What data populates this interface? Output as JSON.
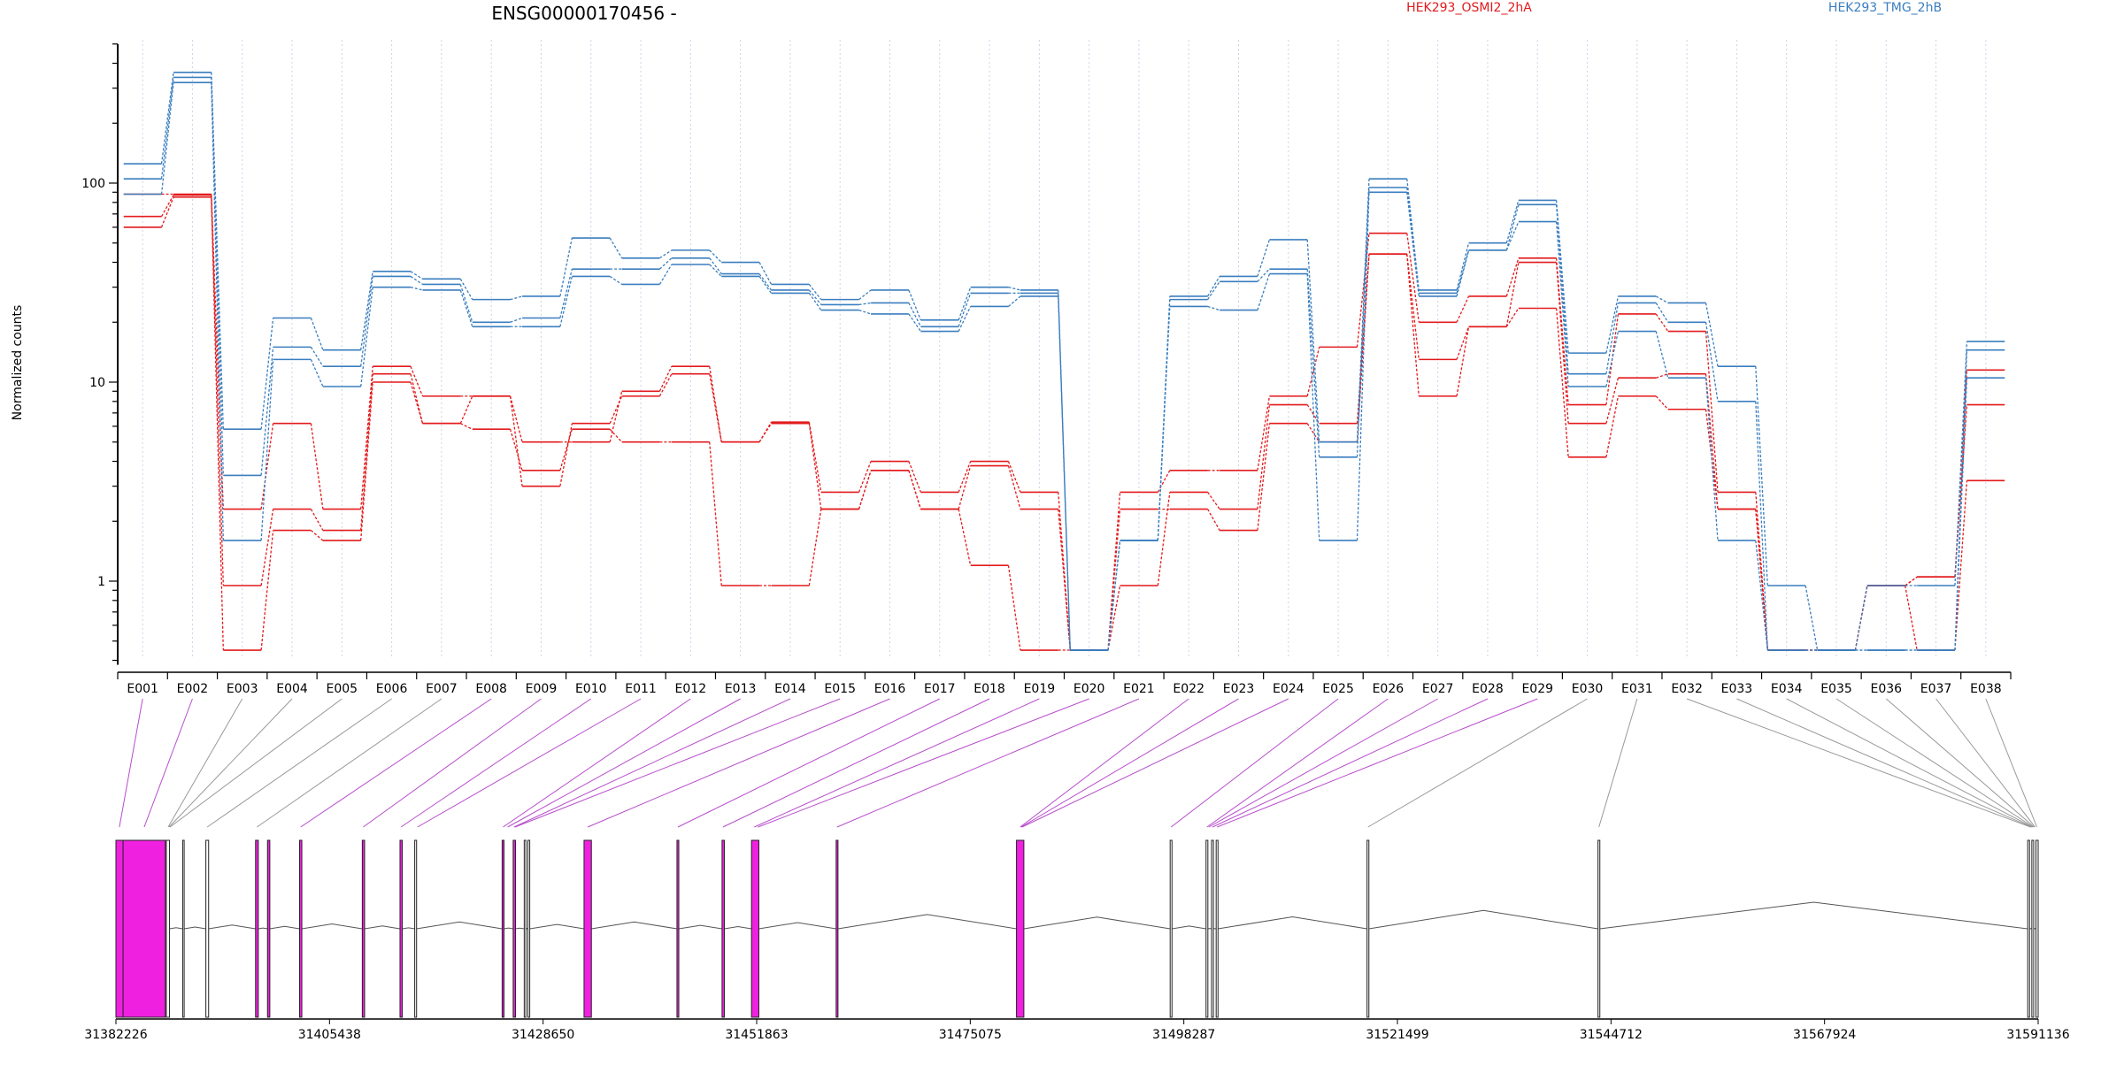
{
  "colors": {
    "series_a": "#e31a1c",
    "series_b": "#3a7ebf",
    "exon_highlight": "#f020e0",
    "connector_highlight": "#b84dcc",
    "connector_plain": "#999999",
    "axis": "#000000",
    "grid": "#c8d4e8"
  },
  "chart_data": [
    {
      "type": "line",
      "title": "ENSG00000170456 -",
      "ylabel": "Normalized counts",
      "xlabel": "",
      "yscale": "log",
      "ylim": [
        0.38,
        500
      ],
      "yticks": [
        1,
        10,
        100
      ],
      "ytick_labels": [
        "1",
        "10",
        "100"
      ],
      "grid": "vertical dotted",
      "legend": "top-right, inline labels",
      "categories": [
        "E001",
        "E002",
        "E003",
        "E004",
        "E005",
        "E006",
        "E007",
        "E008",
        "E009",
        "E010",
        "E011",
        "E012",
        "E013",
        "E014",
        "E015",
        "E016",
        "E017",
        "E018",
        "E019",
        "E020",
        "E021",
        "E022",
        "E023",
        "E024",
        "E025",
        "E026",
        "E027",
        "E028",
        "E029",
        "E030",
        "E031",
        "E032",
        "E033",
        "E034",
        "E035",
        "E036",
        "E037",
        "E038"
      ],
      "groups": [
        {
          "name": "HEK293_OSMI2_2hA",
          "color_key": "series_a",
          "replicates": [
            [
              60,
              85,
              0.45,
              1.8,
              1.6,
              10,
              6.2,
              5.8,
              3.6,
              5.8,
              5,
              5,
              0.95,
              0.95,
              2.3,
              3.6,
              2.3,
              1.2,
              0.45,
              0.45,
              2.3,
              2.3,
              1.8,
              6.2,
              5,
              44,
              13,
              19,
              23.5,
              4.2,
              8.5,
              7.3,
              2.3,
              0.45,
              0.45,
              0.95,
              0.45,
              3.2
            ],
            [
              68,
              87,
              0.95,
              2.3,
              1.8,
              11,
              6.2,
              8.5,
              3,
              6.2,
              8.5,
              11,
              5,
              6.2,
              2.3,
              3.6,
              2.3,
              3.8,
              2.3,
              0.45,
              0.95,
              2.8,
              2.3,
              7.7,
              6.2,
              44,
              8.5,
              19,
              40,
              6.2,
              10.5,
              11,
              2.3,
              0.45,
              0.45,
              0.95,
              1.05,
              7.7
            ],
            [
              88,
              88,
              2.3,
              6.2,
              2.3,
              12,
              8.5,
              8.5,
              5,
              5,
              9,
              12,
              5,
              6.3,
              2.8,
              4,
              2.8,
              4,
              2.8,
              0.45,
              2.8,
              3.6,
              3.6,
              8.5,
              15,
              56,
              20,
              27,
              42,
              7.7,
              22,
              18,
              2.8,
              0.45,
              0.45,
              0.95,
              1.05,
              11.5
            ]
          ]
        },
        {
          "name": "HEK293_TMG_2hB",
          "color_key": "series_b",
          "replicates": [
            [
              88,
              320,
              1.6,
              13,
              9.5,
              30,
              29,
              19,
              19,
              34,
              31,
              39,
              34,
              28,
              23,
              22,
              18,
              24,
              27,
              0.45,
              1.6,
              24,
              23,
              35,
              1.6,
              90,
              27,
              46,
              64,
              9.5,
              18,
              10.5,
              1.6,
              0.45,
              0.45,
              0.45,
              0.45,
              10.5
            ],
            [
              105,
              340,
              3.4,
              15,
              12,
              34,
              31,
              20,
              21,
              37,
              37,
              42,
              35,
              29,
              24.5,
              25,
              19,
              28,
              28,
              0.45,
              1.6,
              26,
              32,
              37,
              4.2,
              95,
              28,
              46,
              78,
              11,
              25,
              20,
              8,
              0.45,
              0.45,
              0.45,
              0.45,
              14.5
            ],
            [
              125,
              360,
              5.8,
              21,
              14.5,
              36,
              33,
              26,
              27,
              53,
              42,
              46,
              40,
              31,
              26,
              29,
              20.5,
              30,
              29,
              0.45,
              1.6,
              27,
              34,
              52,
              5,
              105,
              29,
              50,
              82,
              14,
              27,
              25,
              12,
              0.95,
              0.45,
              0.95,
              0.95,
              16
            ]
          ]
        }
      ]
    },
    {
      "type": "gene-model",
      "x_range": [
        31382226,
        31591136
      ],
      "xticks": [
        31382226,
        31405438,
        31428650,
        31451863,
        31475075,
        31498287,
        31521499,
        31544712,
        31567924,
        31591136
      ],
      "xtick_labels": [
        "31382226",
        "31405438",
        "31428650",
        "31451863",
        "31475075",
        "31498287",
        "31521499",
        "31544712",
        "31567924",
        "31591136"
      ],
      "exons": [
        {
          "id": "E001",
          "start": 31382226,
          "end": 31383000,
          "highlight": true
        },
        {
          "id": "E002",
          "start": 31383000,
          "end": 31387600,
          "highlight": true
        },
        {
          "id": "E003",
          "start": 31387700,
          "end": 31388050,
          "highlight": false
        },
        {
          "id": "E004",
          "start": 31389480,
          "end": 31389640,
          "highlight": false
        },
        {
          "id": "E005",
          "start": 31392000,
          "end": 31392300,
          "highlight": false
        },
        {
          "id": "E006",
          "start": 31397400,
          "end": 31397700,
          "highlight": true
        },
        {
          "id": "E007",
          "start": 31398700,
          "end": 31398950,
          "highlight": true
        },
        {
          "id": "E008",
          "start": 31402180,
          "end": 31402430,
          "highlight": true
        },
        {
          "id": "E009",
          "start": 31409000,
          "end": 31409250,
          "highlight": true
        },
        {
          "id": "E010",
          "start": 31413100,
          "end": 31413350,
          "highlight": true
        },
        {
          "id": "E011",
          "start": 31414700,
          "end": 31414900,
          "highlight": false
        },
        {
          "id": "E012",
          "start": 31424200,
          "end": 31424400,
          "highlight": true
        },
        {
          "id": "E013",
          "start": 31425400,
          "end": 31425650,
          "highlight": true
        },
        {
          "id": "E014",
          "start": 31426600,
          "end": 31426780,
          "highlight": false
        },
        {
          "id": "E015",
          "start": 31427000,
          "end": 31427200,
          "highlight": false
        },
        {
          "id": "E016",
          "start": 31433100,
          "end": 31433900,
          "highlight": true
        },
        {
          "id": "E017",
          "start": 31443200,
          "end": 31443400,
          "highlight": true
        },
        {
          "id": "E018",
          "start": 31448100,
          "end": 31448350,
          "highlight": true
        },
        {
          "id": "E019",
          "start": 31451300,
          "end": 31452100,
          "highlight": true
        },
        {
          "id": "E020",
          "start": 31460500,
          "end": 31460700,
          "highlight": true
        },
        {
          "id": "E021",
          "start": 31480100,
          "end": 31480900,
          "highlight": true
        },
        {
          "id": "E022",
          "start": 31496800,
          "end": 31497000,
          "highlight": false
        },
        {
          "id": "E023",
          "start": 31500700,
          "end": 31500900,
          "highlight": false
        },
        {
          "id": "E024",
          "start": 31501300,
          "end": 31501500,
          "highlight": false
        },
        {
          "id": "E025",
          "start": 31501800,
          "end": 31502000,
          "highlight": false
        },
        {
          "id": "E026",
          "start": 31518200,
          "end": 31518400,
          "highlight": false
        },
        {
          "id": "E027",
          "start": 31543300,
          "end": 31543500,
          "highlight": false
        },
        {
          "id": "E028",
          "start": 31590000,
          "end": 31590200,
          "highlight": false
        },
        {
          "id": "E029",
          "start": 31590450,
          "end": 31590650,
          "highlight": false
        },
        {
          "id": "E030",
          "start": 31590900,
          "end": 31591136,
          "highlight": false
        }
      ],
      "connector_targets": [
        31382600,
        31385300,
        31387900,
        31388000,
        31388100,
        31392150,
        31397550,
        31402300,
        31409100,
        31413200,
        31415000,
        31424300,
        31424800,
        31425500,
        31425600,
        31433500,
        31443300,
        31448200,
        31451600,
        31452000,
        31460600,
        31480500,
        31480600,
        31480700,
        31496900,
        31500800,
        31501000,
        31501400,
        31501900,
        31518300,
        31543400,
        31590300,
        31590400,
        31590500,
        31590600,
        31590700,
        31590800,
        31591000
      ],
      "connector_highlight": [
        true,
        true,
        false,
        false,
        false,
        false,
        false,
        true,
        true,
        true,
        true,
        true,
        true,
        true,
        true,
        true,
        true,
        true,
        true,
        true,
        true,
        true,
        true,
        true,
        true,
        true,
        true,
        true,
        true,
        false,
        false,
        false,
        false,
        false,
        false,
        false,
        false,
        false
      ]
    }
  ]
}
